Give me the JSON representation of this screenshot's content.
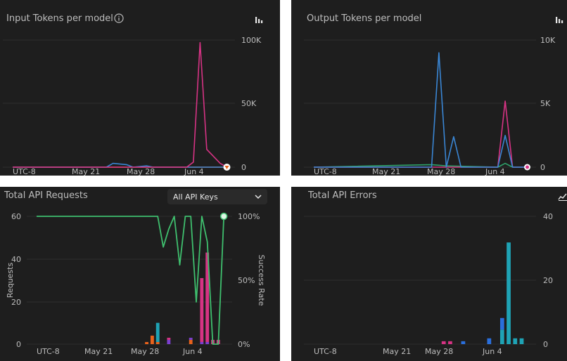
{
  "panels": [
    {
      "id": "input-tokens",
      "title": "Input Tokens per model",
      "chart_data": {
        "type": "line",
        "x": [
          "UTC-8",
          "May 21",
          "May 28",
          "Jun 4"
        ],
        "yticks": [
          "100K",
          "50K",
          "0"
        ],
        "ylim": [
          0,
          100000
        ],
        "series": [
          {
            "color": "#d63384",
            "values": [
              [
                0,
                0
              ],
              [
                20,
                0
              ],
              [
                26,
                0
              ],
              [
                27,
                4000
              ],
              [
                28,
                98000
              ],
              [
                29,
                14000
              ],
              [
                31,
                3000
              ],
              [
                32,
                0
              ]
            ]
          },
          {
            "color": "#3a86d4",
            "values": [
              [
                0,
                0
              ],
              [
                14,
                0
              ],
              [
                15,
                3000
              ],
              [
                17,
                2000
              ],
              [
                18,
                0
              ],
              [
                20,
                1000
              ],
              [
                21,
                0
              ],
              [
                32,
                0
              ]
            ]
          },
          {
            "color": "#e8621c",
            "values": [
              [
                0,
                0
              ],
              [
                32,
                0
              ]
            ]
          }
        ]
      }
    },
    {
      "id": "output-tokens",
      "title": "Output Tokens per model",
      "chart_data": {
        "type": "line",
        "x": [
          "UTC-8",
          "May 21",
          "May 28",
          "Jun 4"
        ],
        "yticks": [
          "10K",
          "5K",
          "0"
        ],
        "ylim": [
          0,
          10000
        ],
        "series": [
          {
            "color": "#3a86d4",
            "values": [
              [
                0,
                0
              ],
              [
                16,
                0
              ],
              [
                17,
                9000
              ],
              [
                18,
                0
              ],
              [
                19,
                2400
              ],
              [
                20,
                0
              ],
              [
                25,
                0
              ],
              [
                26,
                2500
              ],
              [
                27,
                0
              ],
              [
                29,
                0
              ]
            ]
          },
          {
            "color": "#d63384",
            "values": [
              [
                0,
                0
              ],
              [
                24,
                0
              ],
              [
                25,
                0
              ],
              [
                26,
                5200
              ],
              [
                27,
                0
              ],
              [
                29,
                0
              ]
            ]
          },
          {
            "color": "#2ea36b",
            "values": [
              [
                0,
                0
              ],
              [
                16,
                200
              ],
              [
                18,
                100
              ],
              [
                25,
                0
              ],
              [
                26,
                300
              ],
              [
                27,
                0
              ],
              [
                29,
                0
              ]
            ]
          }
        ]
      }
    },
    {
      "id": "api-requests",
      "title": "Total API Requests",
      "dropdown": "All API Keys",
      "ylabel": "Requests",
      "y2label": "Success Rate",
      "chart_data": {
        "type": "bar",
        "x": [
          "UTC-8",
          "May 21",
          "May 28",
          "Jun 4"
        ],
        "yticks": [
          "60",
          "40",
          "20",
          "0"
        ],
        "y2ticks": [
          "100%",
          "50%",
          "0%"
        ],
        "ylim": [
          0,
          60
        ],
        "bars": [
          {
            "i": 20,
            "stack": [
              {
                "v": 1,
                "c": "#e8621c"
              }
            ]
          },
          {
            "i": 21,
            "stack": [
              {
                "v": 4,
                "c": "#e8621c"
              }
            ]
          },
          {
            "i": 22,
            "stack": [
              {
                "v": 1,
                "c": "#e8621c"
              },
              {
                "v": 9,
                "c": "#1fa3b5"
              }
            ]
          },
          {
            "i": 24,
            "stack": [
              {
                "v": 2,
                "c": "#7a3fd0"
              },
              {
                "v": 1,
                "c": "#d63384"
              }
            ]
          },
          {
            "i": 28,
            "stack": [
              {
                "v": 2,
                "c": "#e8621c"
              },
              {
                "v": 1,
                "c": "#7a3fd0"
              }
            ]
          },
          {
            "i": 30,
            "stack": [
              {
                "v": 1,
                "c": "#7a3fd0"
              },
              {
                "v": 30,
                "c": "#d63384"
              }
            ]
          },
          {
            "i": 31,
            "stack": [
              {
                "v": 1,
                "c": "#7a3fd0"
              },
              {
                "v": 42,
                "c": "#d63384"
              }
            ]
          },
          {
            "i": 32,
            "stack": [
              {
                "v": 2,
                "c": "#d63384"
              }
            ]
          },
          {
            "i": 33,
            "stack": [
              {
                "v": 2,
                "c": "#d63384"
              }
            ]
          }
        ],
        "success_rate": {
          "color": "#3fbf6e",
          "values": [
            [
              0,
              100
            ],
            [
              22,
              100
            ],
            [
              23,
              76
            ],
            [
              24,
              90
            ],
            [
              25,
              100
            ],
            [
              26,
              62
            ],
            [
              27,
              100
            ],
            [
              28,
              100
            ],
            [
              29,
              33
            ],
            [
              30,
              100
            ],
            [
              31,
              80
            ],
            [
              32,
              0
            ],
            [
              33,
              0
            ],
            [
              34,
              100
            ]
          ]
        }
      }
    },
    {
      "id": "api-errors",
      "title": "Total API Errors",
      "chart_data": {
        "type": "bar",
        "x": [
          "UTC-8",
          "May 21",
          "May 28",
          "Jun 4"
        ],
        "yticks": [
          "40",
          "20",
          "0"
        ],
        "ylim": [
          0,
          44
        ],
        "bars": [
          {
            "i": 20,
            "stack": [
              {
                "v": 1,
                "c": "#d63384"
              }
            ]
          },
          {
            "i": 21,
            "stack": [
              {
                "v": 1,
                "c": "#d63384"
              }
            ]
          },
          {
            "i": 23,
            "stack": [
              {
                "v": 1,
                "c": "#2a6fdc"
              }
            ]
          },
          {
            "i": 27,
            "stack": [
              {
                "v": 2,
                "c": "#2a6fdc"
              }
            ]
          },
          {
            "i": 29,
            "stack": [
              {
                "v": 5,
                "c": "#1fa3b5"
              },
              {
                "v": 4,
                "c": "#2a6fdc"
              }
            ]
          },
          {
            "i": 30,
            "stack": [
              {
                "v": 35,
                "c": "#1fa3b5"
              }
            ]
          },
          {
            "i": 31,
            "stack": [
              {
                "v": 2,
                "c": "#1fa3b5"
              }
            ]
          },
          {
            "i": 32,
            "stack": [
              {
                "v": 2,
                "c": "#1fa3b5"
              }
            ]
          }
        ]
      }
    }
  ]
}
